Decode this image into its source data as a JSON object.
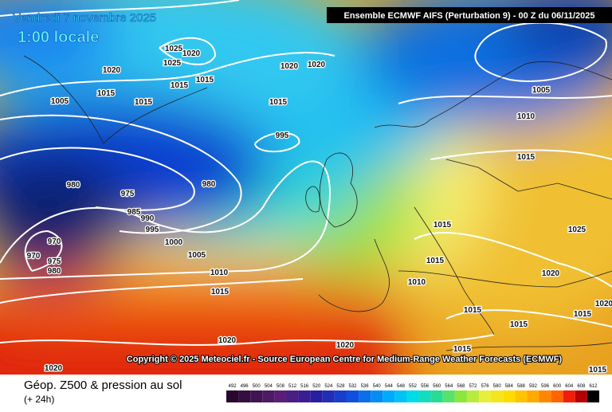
{
  "title": "Vendredi 7 novembre 2025",
  "time": "1:00 locale",
  "model": "Ensemble ECMWF AIFS  (Perturbation 9)  -  00 Z du 06/11/2025",
  "copyright": "Copyright © 2025 Meteociel.fr - Source European Centre for Medium-Range Weather Forecasts (ECMWF)",
  "footer": {
    "title": "Géop. Z500 & pression au sol",
    "subtitle": "(+ 24h)"
  },
  "legend": {
    "values": [
      492,
      496,
      500,
      504,
      508,
      512,
      516,
      520,
      524,
      528,
      532,
      536,
      540,
      544,
      548,
      552,
      556,
      560,
      564,
      568,
      572,
      576,
      580,
      584,
      588,
      592,
      596,
      600,
      604,
      608,
      612
    ]
  },
  "isobar_labels": [
    1025,
    1020,
    1025,
    1020,
    1015,
    1015,
    1015,
    1015,
    1005,
    1020,
    1020,
    1015,
    995,
    980,
    975,
    980,
    985,
    990,
    995,
    1000,
    970,
    970,
    975,
    980,
    1005,
    1010,
    1015,
    1005,
    1010,
    1015,
    1015,
    1025,
    1015,
    1010,
    1020,
    1015,
    1015,
    1015,
    1015,
    1020,
    1020,
    1020,
    1015,
    1020
  ]
}
